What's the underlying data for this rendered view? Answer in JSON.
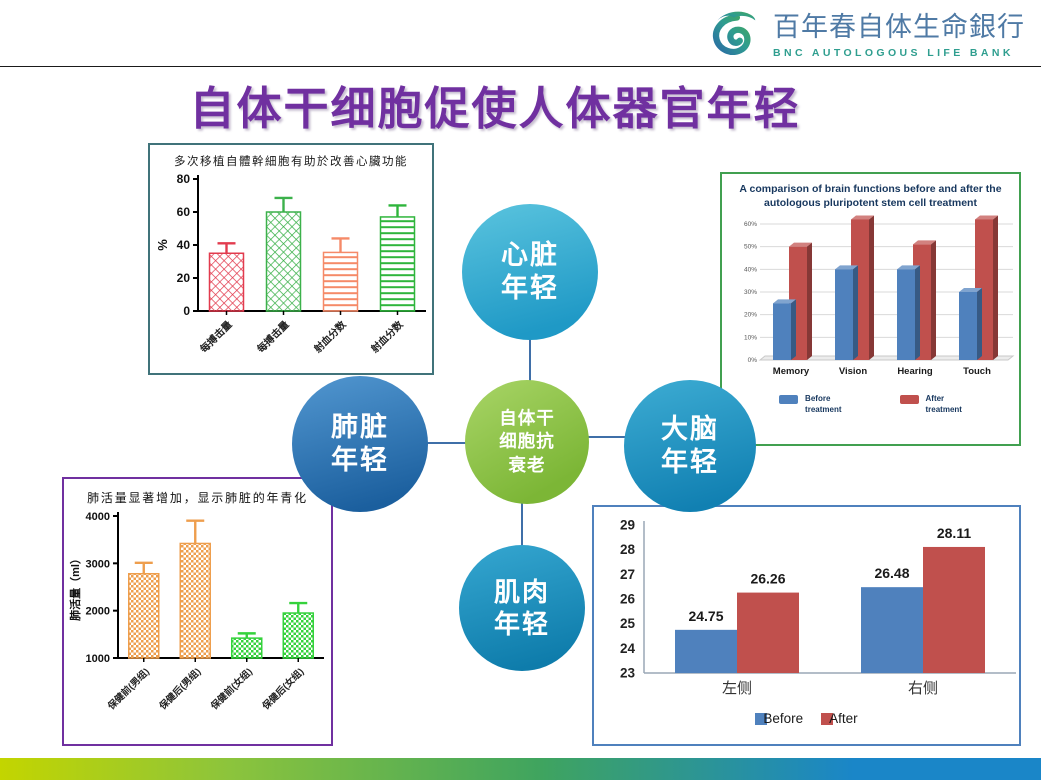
{
  "header": {
    "logo_cn": "百年春自体生命銀行",
    "logo_en": "BNC AUTOLOGOUS LIFE BANK"
  },
  "title": "自体干细胞促使人体器官年轻",
  "colors": {
    "title": "#7030a0",
    "node_blue_light": "#1f99c6",
    "node_blue_dark": "#1b5f9e",
    "node_green": "#7cb636",
    "bottom_bar": [
      "#c3d500",
      "#3fa45f",
      "#1a86c8"
    ]
  },
  "diagram": {
    "center": {
      "lines": [
        "自体干",
        "细胞抗",
        "衰老"
      ]
    },
    "nodes": {
      "heart": {
        "lines": [
          "心脏",
          "年轻"
        ]
      },
      "lung": {
        "lines": [
          "肺脏",
          "年轻"
        ]
      },
      "brain": {
        "lines": [
          "大脑",
          "年轻"
        ]
      },
      "muscle": {
        "lines": [
          "肌肉",
          "年轻"
        ]
      }
    }
  },
  "chart_data": [
    {
      "id": "heart-function",
      "type": "bar",
      "style": "graphpad",
      "title": "多次移植自體幹細胞有助於改善心臟功能",
      "ylabel": "%",
      "ylim": [
        0,
        80
      ],
      "yticks": [
        0,
        20,
        40,
        60,
        80
      ],
      "categories": [
        "每搏击量",
        "每搏击量",
        "射血分数",
        "射血分数"
      ],
      "values": [
        35,
        60,
        35.5,
        57
      ],
      "errors": [
        6,
        8.5,
        8.5,
        7
      ],
      "bar_colors": [
        "#e23b4e",
        "#3cb14b",
        "#f58a68",
        "#2fb53c"
      ],
      "patterns": [
        "lattice",
        "lattice",
        "hstripes",
        "hstripes"
      ]
    },
    {
      "id": "brain-functions",
      "type": "bar",
      "style": "excel3d",
      "title": "A comparison of brain functions before and after the autologous pluripotent stem cell treatment",
      "categories": [
        "Memory",
        "Vision",
        "Hearing",
        "Touch"
      ],
      "series": [
        {
          "name": "Before treatment",
          "color": "#4f81bd",
          "values": [
            25,
            40,
            40,
            30
          ]
        },
        {
          "name": "After treatment",
          "color": "#c0504d",
          "values": [
            50,
            62,
            51,
            62
          ]
        }
      ],
      "ylim": [
        0,
        60
      ],
      "ytick_step": 10,
      "ytick_suffix": "%",
      "legend_position": "bottom"
    },
    {
      "id": "lung-capacity",
      "type": "bar",
      "style": "graphpad",
      "title": "肺活量显著增加，显示肺脏的年青化",
      "ylabel": "肺活量（ml）",
      "ylim": [
        1000,
        4000
      ],
      "yticks": [
        1000,
        2000,
        3000,
        4000
      ],
      "categories": [
        "保健前(男组)",
        "保健后(男组)",
        "保健前(女组)",
        "保健后(女组)"
      ],
      "values": [
        2780,
        3420,
        1420,
        1950
      ],
      "errors": [
        230,
        480,
        100,
        210
      ],
      "bar_colors": [
        "#ee9e4d",
        "#ee9e4d",
        "#35d23c",
        "#35d23c"
      ],
      "patterns": [
        "checker",
        "checker",
        "checker",
        "checker"
      ]
    },
    {
      "id": "muscle-measure",
      "type": "bar",
      "style": "excel",
      "categories": [
        "左侧",
        "右侧"
      ],
      "series": [
        {
          "name": "Before",
          "color": "#4f81bd",
          "values": [
            24.75,
            26.48
          ]
        },
        {
          "name": "After",
          "color": "#c0504d",
          "values": [
            26.26,
            28.11
          ]
        }
      ],
      "ylim": [
        23,
        29
      ],
      "yticks": [
        23,
        24,
        25,
        26,
        27,
        28,
        29
      ],
      "data_labels": true,
      "legend_position": "bottom"
    }
  ]
}
